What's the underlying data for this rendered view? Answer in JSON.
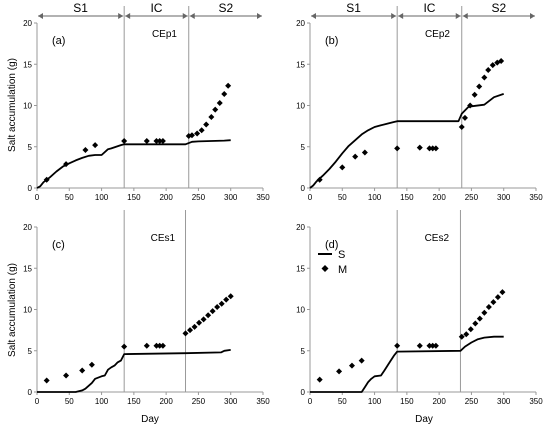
{
  "y_axis_label": "Salt accumulation (g)",
  "x_axis_label": "Day",
  "legend": {
    "line_label": "S",
    "marker_label": "M"
  },
  "colors": {
    "line": "#000000",
    "marker": "#000000",
    "axis": "#999999",
    "divider": "#999999"
  },
  "chart_data": [
    {
      "type": "line",
      "panel": "(a)",
      "title": "CEp1",
      "periods": [
        "S1",
        "IC",
        "S2"
      ],
      "period_boundaries": [
        0,
        135,
        235,
        350
      ],
      "xlim": [
        0,
        350
      ],
      "ylim": [
        0,
        20
      ],
      "xticks": [
        0,
        50,
        100,
        150,
        200,
        250,
        300,
        350
      ],
      "yticks": [
        0,
        5,
        10,
        15,
        20
      ],
      "grid": false,
      "series": [
        {
          "name": "S",
          "kind": "line",
          "x": [
            0,
            5,
            10,
            20,
            30,
            40,
            50,
            60,
            70,
            80,
            90,
            100,
            110,
            115,
            130,
            135,
            230,
            240,
            250,
            270,
            290,
            300
          ],
          "y": [
            0,
            0.2,
            0.7,
            1.3,
            2.0,
            2.6,
            3.0,
            3.35,
            3.65,
            3.9,
            4.0,
            4.0,
            4.7,
            4.8,
            5.2,
            5.3,
            5.3,
            5.6,
            5.65,
            5.7,
            5.75,
            5.8
          ]
        },
        {
          "name": "M",
          "kind": "marker",
          "x": [
            15,
            45,
            75,
            90,
            135,
            170,
            185,
            190,
            195,
            235,
            240,
            248,
            255,
            262,
            270,
            276,
            283,
            290,
            296
          ],
          "y": [
            1.0,
            2.9,
            4.6,
            5.2,
            5.7,
            5.7,
            5.7,
            5.7,
            5.7,
            6.3,
            6.4,
            6.6,
            7.0,
            7.7,
            8.6,
            9.5,
            10.3,
            11.4,
            12.4
          ]
        }
      ]
    },
    {
      "type": "line",
      "panel": "(b)",
      "title": "CEp2",
      "periods": [
        "S1",
        "IC",
        "S2"
      ],
      "period_boundaries": [
        0,
        135,
        235,
        350
      ],
      "xlim": [
        0,
        350
      ],
      "ylim": [
        0,
        20
      ],
      "xticks": [
        0,
        50,
        100,
        150,
        200,
        250,
        300,
        350
      ],
      "yticks": [
        0,
        5,
        10,
        15,
        20
      ],
      "grid": false,
      "series": [
        {
          "name": "S",
          "kind": "line",
          "x": [
            0,
            5,
            10,
            20,
            30,
            40,
            50,
            60,
            70,
            80,
            90,
            100,
            110,
            120,
            130,
            135,
            230,
            235,
            245,
            250,
            270,
            285,
            300
          ],
          "y": [
            0,
            0.3,
            0.8,
            1.5,
            2.3,
            3.2,
            4.2,
            5.1,
            5.8,
            6.5,
            7.0,
            7.4,
            7.6,
            7.8,
            8.0,
            8.1,
            8.1,
            9.0,
            9.8,
            9.9,
            10.1,
            11.0,
            11.4
          ]
        },
        {
          "name": "M",
          "kind": "marker",
          "x": [
            15,
            50,
            70,
            85,
            135,
            170,
            185,
            190,
            195,
            235,
            240,
            248,
            255,
            262,
            270,
            276,
            283,
            290,
            296
          ],
          "y": [
            1.0,
            2.5,
            3.8,
            4.3,
            4.8,
            4.9,
            4.8,
            4.8,
            4.8,
            7.4,
            8.5,
            10.0,
            11.3,
            12.3,
            13.4,
            14.3,
            14.9,
            15.2,
            15.4
          ]
        }
      ]
    },
    {
      "type": "line",
      "panel": "(c)",
      "title": "CEs1",
      "periods": [],
      "period_boundaries": [
        135,
        230
      ],
      "xlim": [
        0,
        350
      ],
      "ylim": [
        0,
        20
      ],
      "xticks": [
        0,
        50,
        100,
        150,
        200,
        250,
        300,
        350
      ],
      "yticks": [
        0,
        5,
        10,
        15,
        20
      ],
      "grid": false,
      "series": [
        {
          "name": "S",
          "kind": "line",
          "x": [
            0,
            60,
            70,
            75,
            85,
            90,
            100,
            105,
            110,
            115,
            120,
            125,
            130,
            135,
            230,
            285,
            290,
            300
          ],
          "y": [
            0,
            0,
            0.2,
            0.4,
            1.1,
            1.6,
            1.9,
            2.0,
            2.7,
            3.0,
            3.2,
            3.6,
            3.8,
            4.6,
            4.7,
            4.8,
            5.0,
            5.1
          ]
        },
        {
          "name": "M",
          "kind": "marker",
          "x": [
            15,
            45,
            70,
            85,
            135,
            170,
            185,
            190,
            195,
            230,
            237,
            244,
            251,
            258,
            265,
            272,
            279,
            286,
            293,
            300
          ],
          "y": [
            1.4,
            2.0,
            2.6,
            3.3,
            5.5,
            5.6,
            5.6,
            5.6,
            5.6,
            7.1,
            7.5,
            7.9,
            8.4,
            8.8,
            9.3,
            9.8,
            10.3,
            10.7,
            11.2,
            11.6
          ]
        }
      ]
    },
    {
      "type": "line",
      "panel": "(d)",
      "title": "CEs2",
      "periods": [],
      "period_boundaries": [
        135,
        233
      ],
      "xlim": [
        0,
        350
      ],
      "ylim": [
        0,
        20
      ],
      "xticks": [
        0,
        50,
        100,
        150,
        200,
        250,
        300,
        350
      ],
      "yticks": [
        0,
        5,
        10,
        15,
        20
      ],
      "grid": false,
      "series": [
        {
          "name": "S",
          "kind": "line",
          "x": [
            0,
            80,
            85,
            90,
            95,
            100,
            110,
            115,
            120,
            125,
            130,
            135,
            233,
            240,
            250,
            260,
            270,
            285,
            300
          ],
          "y": [
            0,
            0,
            0.6,
            1.2,
            1.6,
            1.9,
            2.0,
            2.6,
            3.2,
            3.8,
            4.4,
            4.9,
            5.0,
            5.5,
            6.0,
            6.4,
            6.6,
            6.7,
            6.7
          ]
        },
        {
          "name": "M",
          "kind": "marker",
          "x": [
            15,
            45,
            65,
            80,
            135,
            170,
            185,
            190,
            195,
            235,
            242,
            249,
            256,
            263,
            270,
            277,
            284,
            291,
            298
          ],
          "y": [
            1.5,
            2.5,
            3.2,
            3.8,
            5.6,
            5.6,
            5.6,
            5.6,
            5.6,
            6.7,
            7.0,
            7.6,
            8.3,
            8.9,
            9.6,
            10.3,
            10.9,
            11.5,
            12.1
          ]
        }
      ]
    }
  ]
}
